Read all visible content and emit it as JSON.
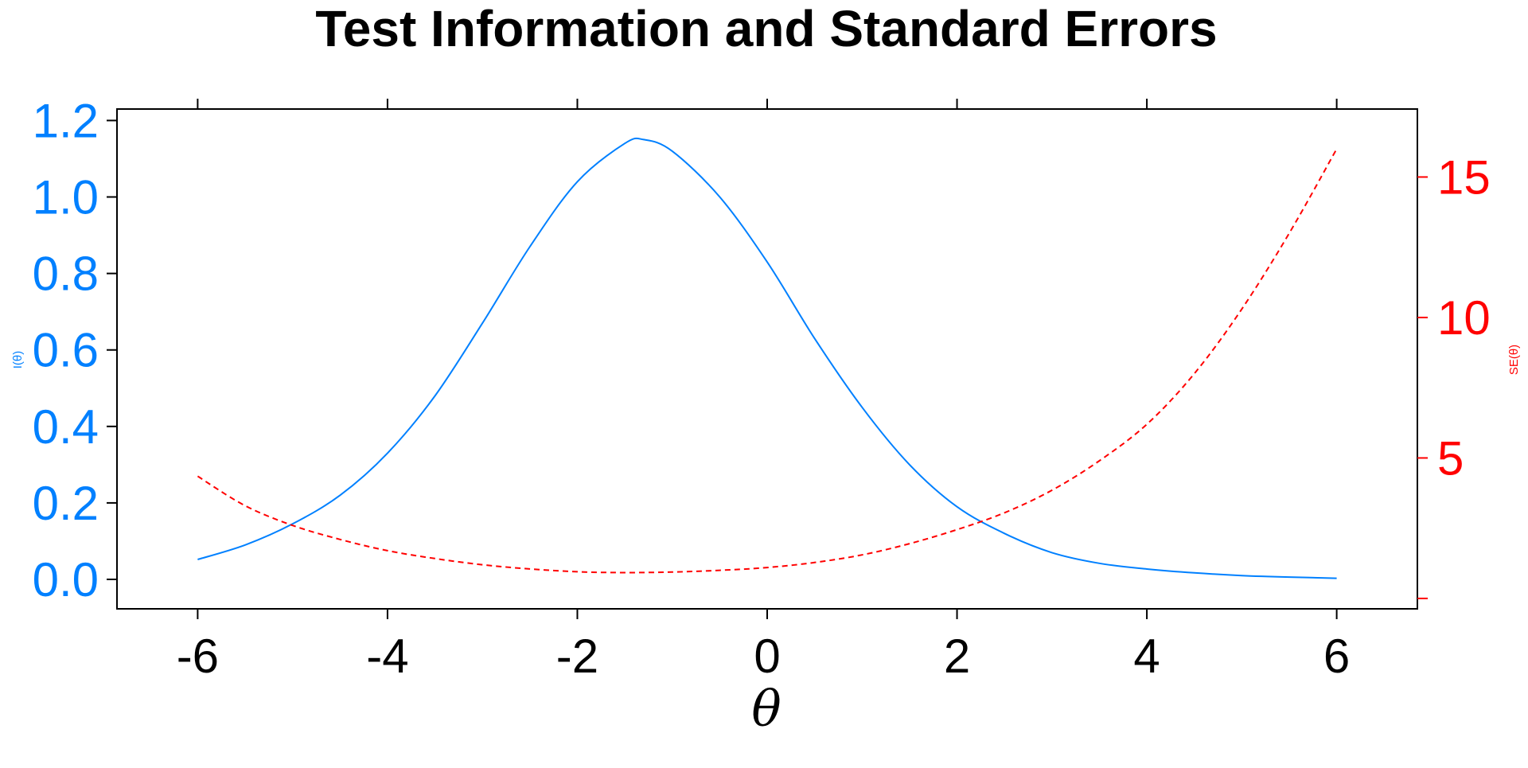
{
  "chart_data": {
    "type": "line",
    "title": "Test Information and Standard Errors",
    "xlabel": "θ",
    "ylabel_left": "I(θ)",
    "ylabel_right": "SE(θ)",
    "xlim": [
      -6.85,
      6.85
    ],
    "ylim_left": [
      -0.077,
      1.23
    ],
    "ylim_right": [
      -0.37,
      17.42
    ],
    "x_ticks": [
      -6,
      -4,
      -2,
      0,
      2,
      4,
      6
    ],
    "x_tick_labels": [
      "-6",
      "-4",
      "-2",
      "0",
      "2",
      "4",
      "6"
    ],
    "y_left_ticks": [
      0.0,
      0.2,
      0.4,
      0.6,
      0.8,
      1.0,
      1.2
    ],
    "y_left_tick_labels": [
      "0.0",
      "0.2",
      "0.4",
      "0.6",
      "0.8",
      "1.0",
      "1.2"
    ],
    "y_right_ticks": [
      0,
      5,
      10,
      15
    ],
    "y_right_tick_labels": [
      "",
      "5",
      "10",
      "15"
    ],
    "grid": false,
    "series": [
      {
        "key": "information",
        "axis": "left",
        "color": "#0080ff",
        "dash": "solid",
        "x": [
          -6.0,
          -5.5,
          -5.0,
          -4.5,
          -4.0,
          -3.5,
          -3.0,
          -2.5,
          -2.0,
          -1.5,
          -1.3,
          -1.0,
          -0.5,
          0.0,
          0.5,
          1.0,
          1.5,
          2.0,
          2.5,
          3.0,
          3.5,
          4.0,
          4.5,
          5.0,
          5.5,
          6.0
        ],
        "y": [
          0.052,
          0.09,
          0.145,
          0.22,
          0.33,
          0.48,
          0.67,
          0.87,
          1.04,
          1.14,
          1.15,
          1.12,
          1.0,
          0.83,
          0.63,
          0.45,
          0.3,
          0.19,
          0.12,
          0.07,
          0.042,
          0.027,
          0.017,
          0.01,
          0.006,
          0.003
        ]
      },
      {
        "key": "standard_error",
        "axis": "right",
        "color": "#ff0000",
        "dash": "dashed",
        "x": [
          -6.0,
          -5.5,
          -5.0,
          -4.5,
          -4.0,
          -3.5,
          -3.0,
          -2.5,
          -2.0,
          -1.5,
          -1.0,
          -0.5,
          0.0,
          0.5,
          1.0,
          1.5,
          2.0,
          2.5,
          3.0,
          3.5,
          4.0,
          4.5,
          5.0,
          5.5,
          6.0
        ],
        "y": [
          4.35,
          3.3,
          2.6,
          2.1,
          1.7,
          1.42,
          1.2,
          1.05,
          0.95,
          0.92,
          0.94,
          1.0,
          1.1,
          1.28,
          1.55,
          1.95,
          2.45,
          3.05,
          3.85,
          4.9,
          6.2,
          8.0,
          10.3,
          13.0,
          16.0
        ]
      }
    ]
  }
}
